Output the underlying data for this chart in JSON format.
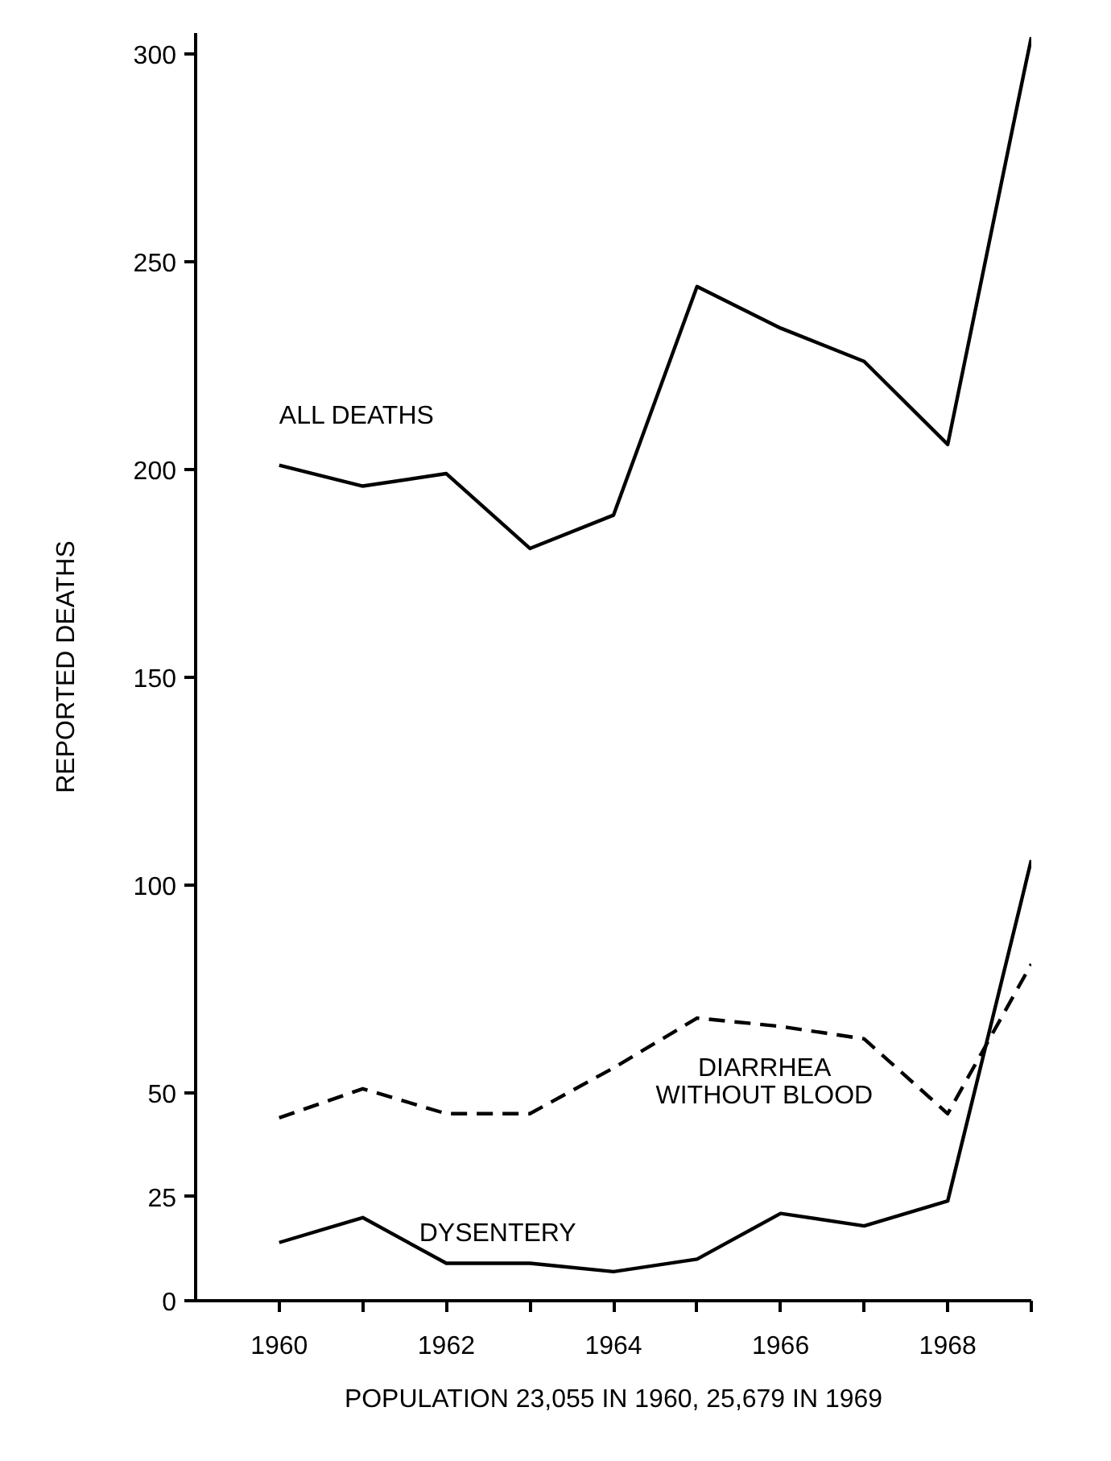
{
  "chart_data": {
    "type": "line",
    "ylabel": "REPORTED DEATHS",
    "x": [
      1960,
      1961,
      1962,
      1963,
      1964,
      1965,
      1966,
      1967,
      1968,
      1969
    ],
    "xlim": [
      1959,
      1969
    ],
    "xticks": [
      1960,
      {
        "value": 1961,
        "label": null
      },
      1962,
      {
        "value": 1963,
        "label": null
      },
      1964,
      {
        "value": 1965,
        "label": null
      },
      1966,
      {
        "value": 1967,
        "label": null
      },
      1968,
      {
        "value": 1969,
        "label": null
      }
    ],
    "ylim": [
      0,
      305
    ],
    "yticks": [
      0,
      25,
      50,
      100,
      150,
      200,
      250,
      300
    ],
    "grid": false,
    "marker": "none",
    "series": [
      {
        "name": "ALL DEATHS",
        "color": "#000000",
        "line_style": "solid",
        "values": [
          201,
          196,
          199,
          181,
          189,
          244,
          234,
          226,
          206,
          304
        ]
      },
      {
        "name": "DIARRHEA\nWITHOUT BLOOD",
        "color": "#000000",
        "line_style": "dashed",
        "values": [
          44,
          51,
          45,
          45,
          56,
          68,
          66,
          63,
          45,
          81
        ]
      },
      {
        "name": "DYSENTERY",
        "color": "#000000",
        "line_style": "solid",
        "values": [
          14,
          20,
          9,
          9,
          7,
          10,
          21,
          18,
          24,
          106
        ]
      }
    ],
    "annotations": [
      "POPULATION 23,055 IN 1960, 25,679 IN 1969"
    ]
  }
}
